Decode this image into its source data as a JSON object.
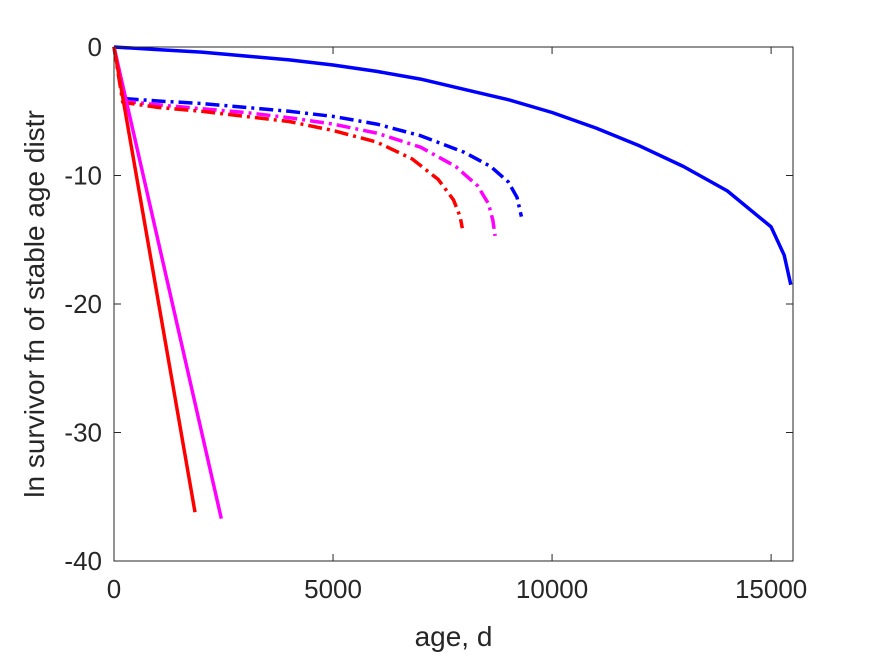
{
  "chart_data": {
    "type": "line",
    "title": "",
    "xlabel": "age, d",
    "ylabel": "ln survivor fn of stable age distr",
    "xlim": [
      0,
      15500
    ],
    "ylim": [
      -40,
      0
    ],
    "xticks": [
      0,
      5000,
      10000,
      15000
    ],
    "yticks": [
      -40,
      -30,
      -20,
      -10,
      0
    ],
    "grid": false,
    "legend": "none",
    "series": [
      {
        "color": "#0000ff",
        "style": "solid",
        "x": [
          0,
          1000,
          2000,
          3000,
          4000,
          5000,
          6000,
          7000,
          8000,
          9000,
          10000,
          11000,
          12000,
          13000,
          14000,
          15000,
          15300,
          15450
        ],
        "y": [
          0,
          -0.2,
          -0.4,
          -0.7,
          -1.0,
          -1.4,
          -1.9,
          -2.5,
          -3.3,
          -4.1,
          -5.1,
          -6.3,
          -7.7,
          -9.3,
          -11.2,
          -14.0,
          -16.2,
          -18.5
        ]
      },
      {
        "color": "#0000ff",
        "style": "dashdot",
        "x": [
          0,
          200,
          1000,
          2000,
          3000,
          4000,
          5000,
          6000,
          7000,
          8000,
          8600,
          9000,
          9200,
          9300
        ],
        "y": [
          0,
          -4.0,
          -4.2,
          -4.4,
          -4.7,
          -5.0,
          -5.4,
          -6.0,
          -6.9,
          -8.2,
          -9.3,
          -10.5,
          -11.7,
          -13.2
        ]
      },
      {
        "color": "#ff00ff",
        "style": "dashdot",
        "x": [
          0,
          200,
          1000,
          2000,
          3000,
          4000,
          5000,
          6000,
          7000,
          7800,
          8300,
          8550,
          8650,
          8700
        ],
        "y": [
          0,
          -4.2,
          -4.5,
          -4.8,
          -5.1,
          -5.5,
          -6.0,
          -6.7,
          -7.8,
          -9.3,
          -10.8,
          -12.2,
          -13.5,
          -14.7
        ]
      },
      {
        "color": "#ff0000",
        "style": "dashdot",
        "x": [
          0,
          200,
          1000,
          2000,
          3000,
          4000,
          5000,
          6000,
          6800,
          7400,
          7750,
          7900,
          7950
        ],
        "y": [
          0,
          -4.3,
          -4.7,
          -5.0,
          -5.4,
          -5.8,
          -6.5,
          -7.4,
          -8.7,
          -10.3,
          -11.9,
          -13.2,
          -14.1
        ]
      },
      {
        "color": "#ff00ff",
        "style": "solid",
        "x": [
          0,
          2450
        ],
        "y": [
          0,
          -36.7
        ]
      },
      {
        "color": "#ff0000",
        "style": "solid",
        "x": [
          0,
          1850
        ],
        "y": [
          0,
          -36.2
        ]
      }
    ]
  }
}
